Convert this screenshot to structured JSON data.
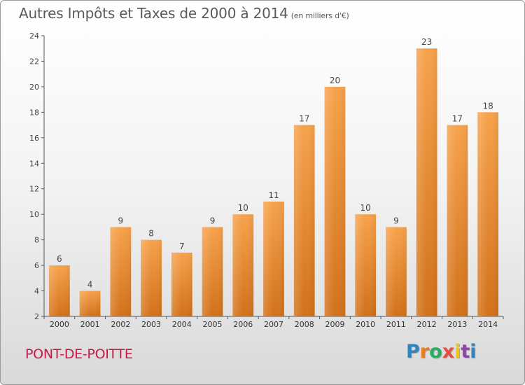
{
  "title": "Autres Impôts et Taxes de 2000 à 2014",
  "subtitle": "(en milliers d'€)",
  "commune": "PONT-DE-POITTE",
  "logo": {
    "letters": [
      "P",
      "r",
      "o",
      "x",
      "i",
      "t",
      "i"
    ],
    "colors": [
      "#2e86c1",
      "#e67e22",
      "#27ae60",
      "#e74c3c",
      "#f1c40f",
      "#8e44ad",
      "#2e86c1"
    ]
  },
  "chart_data": {
    "type": "bar",
    "categories": [
      "2000",
      "2001",
      "2002",
      "2003",
      "2004",
      "2005",
      "2006",
      "2007",
      "2008",
      "2009",
      "2010",
      "2011",
      "2012",
      "2013",
      "2014"
    ],
    "values": [
      6,
      4,
      9,
      8,
      7,
      9,
      10,
      11,
      17,
      20,
      10,
      9,
      23,
      17,
      18
    ],
    "data_labels": [
      "6",
      "4",
      "9",
      "8",
      "7",
      "9",
      "10",
      "11",
      "17",
      "20",
      "10",
      "9",
      "23",
      "17",
      "18"
    ],
    "yticks": [
      "2",
      "4",
      "6",
      "8",
      "10",
      "12",
      "14",
      "16",
      "18",
      "20",
      "22",
      "24"
    ],
    "ylim": [
      2,
      24
    ],
    "grid": false,
    "bar_color": "#f39c3c"
  }
}
